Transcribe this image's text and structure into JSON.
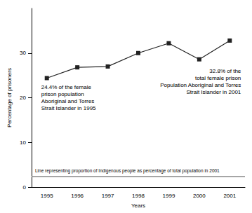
{
  "chart_data": {
    "type": "line",
    "x_label": "Years",
    "y_label": "Percentage of prisoners",
    "categories": [
      "1995",
      "1996",
      "1997",
      "1998",
      "1999",
      "2000",
      "2001"
    ],
    "values": [
      24.4,
      26.8,
      27,
      30,
      32.2,
      28.6,
      32.8
    ],
    "color": "#222222",
    "marker": "square",
    "ylim": [
      0,
      40
    ],
    "yticks": [
      0,
      10,
      20,
      30
    ],
    "grid": false,
    "annotations": [
      {
        "text": "24.4% of the female\nprison population\nAboriginal and Torres\nStrait Islander in 1995",
        "point": "1995"
      },
      {
        "text": "32.8% of the\ntotal female prison\nPopulation Aboriginal and Torres\nStrait Islander in 2001",
        "point": "2001"
      }
    ],
    "reference_line": {
      "value": 2.4,
      "color": "#888888",
      "label": "Line representing proportion of Indigenous people as percentage of total population in 2001"
    }
  }
}
